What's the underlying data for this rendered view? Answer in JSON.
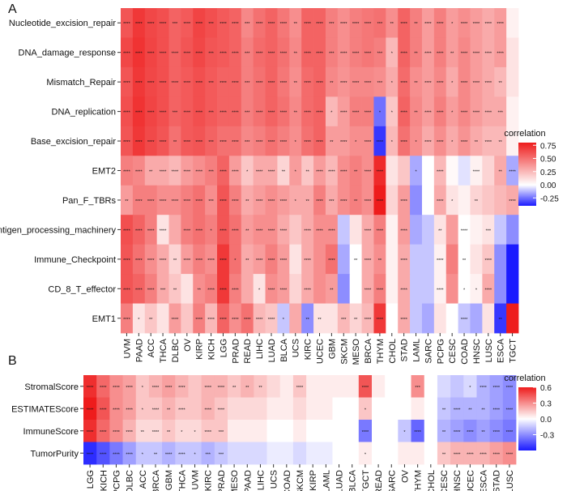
{
  "chart_data": [
    {
      "type": "heatmap",
      "panel_label": "A",
      "legend_title": "correlation",
      "legend_ticks": [
        0.75,
        0.5,
        0.25,
        0.0,
        -0.25
      ],
      "legend_tick_labels": [
        "0.75",
        "0.50",
        "0.25",
        "0.00",
        "-0.25"
      ],
      "value_range": [
        -0.4,
        0.8
      ],
      "rows": [
        "Nucleotide_excision_repair",
        "DNA_damage_response",
        "Mismatch_Repair",
        "DNA_replication",
        "Base_excision_repair",
        "EMT2",
        "Pan_F_TBRs",
        "Antigen_processing_machinery",
        "Immune_Checkpoint",
        "CD_8_T_effector",
        "EMT1"
      ],
      "columns": [
        "UVM",
        "PAAD",
        "ACC",
        "THCA",
        "DLBC",
        "OV",
        "KIRP",
        "KICH",
        "LGG",
        "PRAD",
        "READ",
        "LIHC",
        "LUAD",
        "BLCA",
        "UCS",
        "KIRC",
        "UCEC",
        "GBM",
        "SKCM",
        "MESO",
        "BRCA",
        "THYM",
        "CHOL",
        "STAD",
        "LAML",
        "SARC",
        "PCPG",
        "CESC",
        "COAD",
        "HNSC",
        "LUSC",
        "ESCA",
        "TGCT"
      ],
      "values": [
        [
          0.6,
          0.7,
          0.65,
          0.62,
          0.55,
          0.58,
          0.66,
          0.62,
          0.58,
          0.55,
          0.42,
          0.5,
          0.55,
          0.48,
          0.4,
          0.55,
          0.55,
          0.45,
          0.4,
          0.45,
          0.48,
          0.5,
          0.4,
          0.55,
          0.45,
          0.35,
          0.45,
          0.35,
          0.4,
          0.35,
          0.3,
          0.35,
          0.05
        ],
        [
          0.65,
          0.72,
          0.66,
          0.62,
          0.55,
          0.6,
          0.65,
          0.6,
          0.58,
          0.55,
          0.45,
          0.52,
          0.55,
          0.5,
          0.42,
          0.55,
          0.55,
          0.45,
          0.4,
          0.45,
          0.48,
          0.45,
          0.25,
          0.55,
          0.45,
          0.35,
          0.45,
          0.35,
          0.42,
          0.35,
          0.3,
          0.35,
          0.1
        ],
        [
          0.6,
          0.7,
          0.65,
          0.62,
          0.55,
          0.58,
          0.62,
          0.58,
          0.55,
          0.55,
          0.45,
          0.5,
          0.55,
          0.48,
          0.4,
          0.52,
          0.55,
          0.42,
          0.38,
          0.42,
          0.42,
          0.4,
          0.3,
          0.52,
          0.4,
          0.35,
          0.42,
          0.3,
          0.42,
          0.35,
          0.3,
          0.25,
          0.1
        ],
        [
          0.62,
          0.72,
          0.66,
          0.62,
          0.55,
          0.58,
          0.62,
          0.58,
          0.55,
          0.55,
          0.45,
          0.5,
          0.55,
          0.5,
          0.42,
          0.52,
          0.55,
          0.25,
          0.35,
          0.45,
          0.45,
          -0.25,
          0.2,
          0.55,
          0.42,
          0.35,
          0.45,
          0.35,
          0.42,
          0.35,
          0.3,
          0.3,
          0.05
        ],
        [
          0.6,
          0.7,
          0.64,
          0.6,
          0.5,
          0.58,
          0.6,
          0.55,
          0.5,
          0.5,
          0.42,
          0.45,
          0.5,
          0.45,
          0.4,
          0.5,
          0.55,
          0.35,
          0.35,
          0.4,
          0.4,
          -0.35,
          0.25,
          0.5,
          0.4,
          0.3,
          0.4,
          0.3,
          0.38,
          0.3,
          0.25,
          0.25,
          0.05
        ],
        [
          0.45,
          0.42,
          0.3,
          0.3,
          0.25,
          0.35,
          0.4,
          0.45,
          0.55,
          0.35,
          0.2,
          0.3,
          0.3,
          0.15,
          0.35,
          0.2,
          0.35,
          0.25,
          0.4,
          0.45,
          0.4,
          0.75,
          0.1,
          0.2,
          -0.15,
          0.0,
          0.25,
          0.02,
          -0.05,
          0.05,
          0.15,
          0.3,
          -0.15
        ],
        [
          0.35,
          0.45,
          0.45,
          0.4,
          0.4,
          0.45,
          0.5,
          0.4,
          0.6,
          0.45,
          0.3,
          0.35,
          0.4,
          0.35,
          0.3,
          0.3,
          0.45,
          0.3,
          0.4,
          0.45,
          0.4,
          0.8,
          0.15,
          0.35,
          -0.2,
          0.0,
          0.3,
          0.1,
          0.05,
          0.15,
          0.2,
          0.25,
          0.3
        ],
        [
          0.62,
          0.55,
          0.45,
          0.1,
          0.3,
          0.45,
          0.5,
          0.45,
          0.6,
          0.5,
          0.35,
          0.4,
          0.4,
          0.3,
          0.2,
          0.3,
          0.4,
          0.4,
          -0.1,
          0.1,
          0.3,
          0.45,
          0.05,
          0.35,
          -0.15,
          -0.1,
          0.1,
          0.35,
          0.0,
          0.05,
          0.1,
          -0.1,
          -0.2
        ],
        [
          0.6,
          0.5,
          0.4,
          0.3,
          0.15,
          0.35,
          0.45,
          0.4,
          0.7,
          0.5,
          0.3,
          0.35,
          0.45,
          0.35,
          0.1,
          0.3,
          0.4,
          0.5,
          -0.15,
          0.0,
          0.3,
          0.4,
          0.05,
          0.3,
          -0.1,
          -0.1,
          0.05,
          0.45,
          0.0,
          0.1,
          0.2,
          -0.2,
          -0.5
        ],
        [
          0.6,
          0.55,
          0.45,
          0.3,
          0.2,
          0.1,
          0.4,
          0.45,
          0.7,
          0.45,
          0.3,
          0.1,
          0.4,
          0.35,
          0.15,
          0.3,
          0.4,
          0.35,
          -0.2,
          0.0,
          0.3,
          0.45,
          0.05,
          0.3,
          -0.1,
          -0.1,
          0.05,
          0.4,
          0.0,
          0.05,
          0.3,
          -0.2,
          -0.5
        ],
        [
          0.45,
          0.1,
          0.2,
          0.1,
          0.35,
          0.2,
          0.45,
          0.25,
          0.55,
          0.4,
          0.5,
          0.25,
          0.2,
          -0.1,
          0.3,
          -0.2,
          0.1,
          0.1,
          0.25,
          0.15,
          0.25,
          0.7,
          0.0,
          0.3,
          -0.1,
          -0.15,
          0.1,
          0.0,
          -0.1,
          -0.15,
          0.1,
          -0.35,
          0.8
        ]
      ],
      "stars": [
        [
          "****",
          "****",
          "****",
          "****",
          "***",
          "****",
          "****",
          "***",
          "****",
          "****",
          "***",
          "****",
          "****",
          "****",
          "**",
          "****",
          "****",
          "***",
          "****",
          "****",
          "****",
          "***",
          "**",
          "****",
          "**",
          "****",
          "****",
          "*",
          "****",
          "****",
          "****",
          "****",
          ""
        ],
        [
          "****",
          "****",
          "****",
          "****",
          "****",
          "****",
          "****",
          "***",
          "****",
          "****",
          "***",
          "****",
          "****",
          "****",
          "**",
          "****",
          "****",
          "***",
          "****",
          "****",
          "****",
          "***",
          "*",
          "****",
          "**",
          "****",
          "****",
          "**",
          "****",
          "****",
          "****",
          "****",
          ""
        ],
        [
          "****",
          "****",
          "****",
          "****",
          "****",
          "****",
          "****",
          "***",
          "****",
          "****",
          "***",
          "****",
          "****",
          "****",
          "**",
          "****",
          "****",
          "**",
          "****",
          "****",
          "****",
          "***",
          "*",
          "****",
          "**",
          "****",
          "****",
          "*",
          "****",
          "****",
          "****",
          "**",
          ""
        ],
        [
          "****",
          "****",
          "****",
          "****",
          "***",
          "****",
          "****",
          "***",
          "****",
          "****",
          "***",
          "****",
          "****",
          "****",
          "**",
          "****",
          "****",
          "*",
          "****",
          "****",
          "****",
          "*",
          "*",
          "****",
          "**",
          "****",
          "****",
          "*",
          "****",
          "****",
          "****",
          "***",
          ""
        ],
        [
          "****",
          "****",
          "****",
          "****",
          "**",
          "****",
          "****",
          "***",
          "****",
          "****",
          "***",
          "****",
          "****",
          "****",
          "*",
          "****",
          "****",
          "**",
          "****",
          "*",
          "****",
          "****",
          "*",
          "****",
          "*",
          "****",
          "****",
          "*",
          "****",
          "**",
          "****",
          "**",
          ""
        ],
        [
          "****",
          "****",
          "**",
          "****",
          "****",
          "****",
          "****",
          "***",
          "****",
          "****",
          "*",
          "****",
          "****",
          "**",
          "*",
          "**",
          "****",
          "****",
          "****",
          "**",
          "****",
          "****",
          "",
          "",
          "*",
          "",
          "****",
          "",
          "",
          "****",
          "",
          "**",
          "****"
        ],
        [
          "**",
          "****",
          "****",
          "****",
          "****",
          "****",
          "****",
          "***",
          "****",
          "****",
          "**",
          "****",
          "****",
          "****",
          "*",
          "**",
          "****",
          "***",
          "****",
          "**",
          "****",
          "****",
          "",
          "****",
          "",
          "",
          "****",
          "*",
          "",
          "**",
          "",
          "",
          "****"
        ],
        [
          "****",
          "****",
          "****",
          "****",
          "",
          "****",
          "****",
          "*",
          "****",
          "****",
          "**",
          "****",
          "****",
          "****",
          "",
          "****",
          "****",
          "****",
          "",
          "",
          "****",
          "****",
          "",
          "****",
          "",
          "",
          "**",
          "",
          "****",
          "",
          "***",
          "",
          ""
        ],
        [
          "****",
          "****",
          "****",
          "****",
          "**",
          "****",
          "****",
          "****",
          "****",
          "*",
          "**",
          "****",
          "****",
          "****",
          "",
          "****",
          "",
          "****",
          "",
          "**",
          "****",
          "**",
          "",
          "****",
          "",
          "",
          "****",
          "",
          "**",
          "",
          "****",
          "",
          ""
        ],
        [
          "****",
          "****",
          "****",
          "***",
          "**",
          "",
          "**",
          "****",
          "****",
          "****",
          "",
          "*",
          "****",
          "****",
          "",
          "****",
          "",
          "**",
          "",
          "",
          "****",
          "****",
          "",
          "****",
          "",
          "",
          "****",
          "",
          "*",
          "*",
          "****",
          "",
          ""
        ],
        [
          "****",
          "*",
          "**",
          "",
          "****",
          "",
          "****",
          "****",
          "****",
          "****",
          "****",
          "****",
          "****",
          "*",
          "",
          "**",
          "**",
          "",
          "***",
          "**",
          "****",
          "****",
          "",
          "****",
          "",
          "",
          "",
          "",
          "****",
          "",
          "",
          "**",
          ""
        ]
      ]
    },
    {
      "type": "heatmap",
      "panel_label": "B",
      "legend_title": "correlation",
      "legend_ticks": [
        0.6,
        0.3,
        0.0,
        -0.3
      ],
      "legend_tick_labels": [
        "0.6",
        "0.3",
        "0.0",
        "-0.3"
      ],
      "value_range": [
        -0.6,
        0.6
      ],
      "rows": [
        "StromalScore",
        "ESTIMATEScore",
        "ImmuneScore",
        "TumorPurity"
      ],
      "columns": [
        "LGG",
        "KICH",
        "PCPG",
        "DLBC",
        "ACC",
        "BRCA",
        "GBM",
        "THCA",
        "UVM",
        "KIRC",
        "PRAD",
        "MESO",
        "PAAD",
        "LIHC",
        "UCS",
        "COAD",
        "SKCM",
        "KIRP",
        "LAML",
        "LUAD",
        "BLCA",
        "TGCT",
        "READ",
        "SARC",
        "OV",
        "THYM",
        "CHOL",
        "CESC",
        "HNSC",
        "UCEC",
        "ESCA",
        "STAD",
        "LUSC"
      ],
      "values": [
        [
          0.55,
          0.4,
          0.3,
          0.25,
          0.15,
          0.2,
          0.25,
          0.2,
          0.15,
          0.2,
          0.2,
          0.15,
          0.2,
          0.15,
          0.1,
          0.05,
          0.15,
          0.05,
          0.05,
          0.05,
          0.05,
          0.45,
          0.05,
          0.0,
          0.0,
          0.3,
          0.0,
          -0.1,
          -0.15,
          -0.1,
          -0.2,
          -0.25,
          -0.3
        ],
        [
          0.6,
          0.45,
          0.3,
          0.25,
          0.15,
          0.15,
          0.2,
          0.15,
          0.15,
          0.2,
          0.15,
          0.1,
          0.1,
          0.1,
          0.05,
          0.05,
          0.1,
          0.05,
          0.05,
          0.0,
          0.0,
          0.15,
          0.0,
          0.0,
          0.0,
          0.05,
          0.0,
          -0.15,
          -0.2,
          -0.2,
          -0.2,
          -0.25,
          -0.3
        ],
        [
          0.55,
          0.4,
          0.3,
          0.2,
          0.1,
          0.1,
          0.15,
          0.1,
          0.1,
          0.15,
          0.15,
          0.05,
          0.05,
          0.05,
          0.0,
          0.0,
          0.05,
          0.0,
          0.0,
          0.0,
          0.0,
          -0.35,
          0.0,
          0.0,
          -0.15,
          -0.4,
          0.0,
          -0.2,
          -0.25,
          -0.3,
          -0.25,
          -0.3,
          -0.35
        ],
        [
          -0.55,
          -0.45,
          -0.35,
          -0.25,
          -0.15,
          -0.15,
          -0.2,
          -0.15,
          -0.15,
          -0.2,
          -0.15,
          -0.1,
          -0.1,
          -0.1,
          -0.05,
          -0.05,
          -0.1,
          -0.05,
          -0.05,
          0.0,
          0.0,
          0.05,
          0.0,
          0.0,
          0.05,
          0.05,
          0.0,
          0.15,
          0.2,
          0.2,
          0.2,
          0.25,
          0.3
        ]
      ],
      "stars": [
        [
          "****",
          "****",
          "****",
          "****",
          "*",
          "****",
          "****",
          "****",
          "",
          "****",
          "****",
          "**",
          "**",
          "**",
          "",
          "",
          "****",
          "",
          "",
          "",
          "",
          "****",
          "",
          "",
          "",
          "***",
          "",
          "",
          "",
          "*",
          "****",
          "****",
          "****"
        ],
        [
          "****",
          "****",
          "****",
          "****",
          "*",
          "****",
          "**",
          "****",
          "",
          "****",
          "****",
          "",
          "",
          "",
          "",
          "",
          "",
          "",
          "",
          "",
          "",
          "*",
          "",
          "",
          "",
          "",
          "",
          "**",
          "****",
          "**",
          "**",
          "****",
          "****"
        ],
        [
          "****",
          "****",
          "****",
          "****",
          "**",
          "****",
          "**",
          "*",
          "*",
          "****",
          "***",
          "",
          "",
          "",
          "",
          "",
          "",
          "",
          "",
          "",
          "",
          "****",
          "",
          "",
          "*",
          "****",
          "",
          "**",
          "****",
          "****",
          "**",
          "****",
          "****"
        ],
        [
          "****",
          "****",
          "****",
          "****",
          "*",
          "**",
          "****",
          "****",
          "*",
          "***",
          "***",
          "",
          "",
          "",
          "",
          "",
          "",
          "",
          "",
          "",
          "",
          "*",
          "",
          "",
          "",
          "",
          "",
          "**",
          "****",
          "****",
          "****",
          "****",
          "****"
        ]
      ]
    }
  ]
}
